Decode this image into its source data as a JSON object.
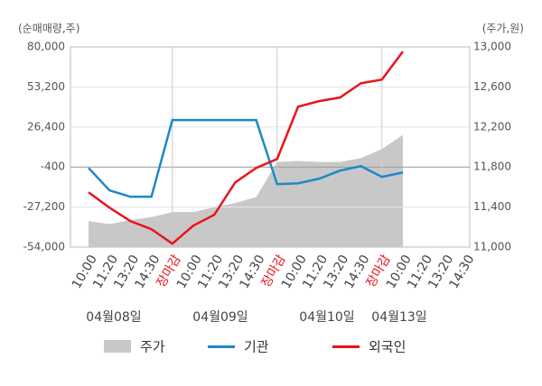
{
  "chart_data": {
    "type": "line",
    "y_axis_label": "(순매매량,주)",
    "y2_axis_label": "(주가,원)",
    "categories": [
      "10:00",
      "11:20",
      "13:20",
      "14:30",
      "장마감",
      "10:00",
      "11:20",
      "13:20",
      "14:30",
      "장마감",
      "10:00",
      "11:20",
      "13:20",
      "14:30",
      "장마감",
      "10:00",
      "11:20",
      "13:20",
      "14:30"
    ],
    "close_label": "장마감",
    "date_labels": [
      "04월08일",
      "04월09일",
      "04월10일",
      "04월13일"
    ],
    "ylim": [
      -54000,
      80000
    ],
    "yticks": [
      {
        "value": 80000,
        "label": "80,000"
      },
      {
        "value": 53200,
        "label": "53,200"
      },
      {
        "value": 26400,
        "label": "26,400"
      },
      -400,
      {
        "value": -27200,
        "label": "-27,200"
      },
      {
        "value": -54000,
        "label": "-54,000"
      }
    ],
    "y2lim": [
      11000,
      13000
    ],
    "y2ticks": [
      {
        "value": 13000,
        "label": "13,000"
      },
      {
        "value": 12600,
        "label": "12,600"
      },
      {
        "value": 12200,
        "label": "12,200"
      },
      {
        "value": 11800,
        "label": "11,800"
      },
      {
        "value": 11400,
        "label": "11,400"
      },
      {
        "value": 11000,
        "label": "11,000"
      }
    ],
    "series": [
      {
        "name": "주가",
        "type": "area",
        "axis": "y2",
        "color": "#c8c8c8",
        "values": [
          11260,
          11230,
          11270,
          11300,
          11350,
          11350,
          11400,
          11440,
          11500,
          11850,
          11860,
          11850,
          11850,
          11890,
          11980,
          12120,
          null,
          null,
          null
        ]
      },
      {
        "name": "기관",
        "color": "#1e88c8",
        "values": [
          -1000,
          -16000,
          -20300,
          -20300,
          31000,
          31000,
          31000,
          31000,
          31000,
          -11900,
          -11300,
          -8200,
          -2800,
          200,
          -7000,
          -4000,
          null,
          null,
          null
        ]
      },
      {
        "name": "외국인",
        "color": "#e8141b",
        "values": [
          -17300,
          -27600,
          -36600,
          -42000,
          -51700,
          -39600,
          -32400,
          -10700,
          -1000,
          5000,
          40000,
          43700,
          46100,
          55700,
          58100,
          76900,
          null,
          null,
          null
        ]
      }
    ]
  }
}
